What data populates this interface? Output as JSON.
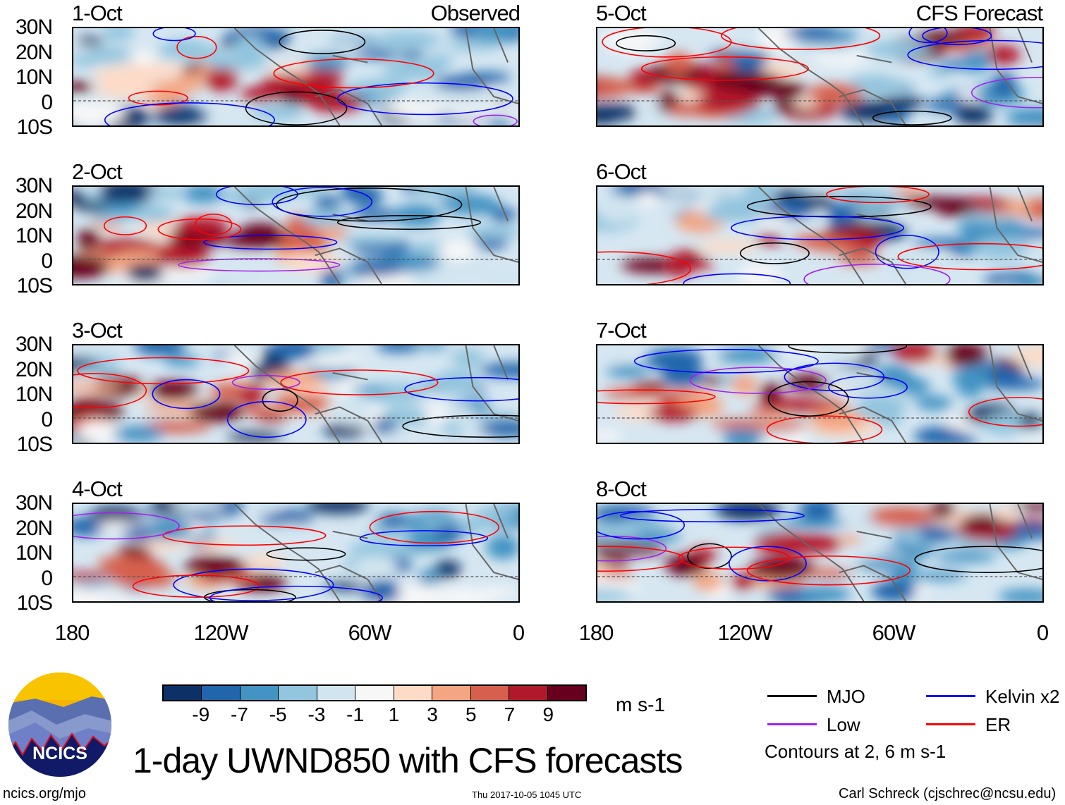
{
  "panels": {
    "left_title": "Observed",
    "right_title": "CFS Forecast",
    "observed_dates": [
      "1-Oct",
      "2-Oct",
      "3-Oct",
      "4-Oct"
    ],
    "forecast_dates": [
      "5-Oct",
      "6-Oct",
      "7-Oct",
      "8-Oct"
    ],
    "lat_labels": [
      "30N",
      "20N",
      "10N",
      "0",
      "10S"
    ],
    "lon_labels": [
      "180",
      "120W",
      "60W",
      "0"
    ]
  },
  "colorbar": {
    "colors": [
      "#0b3166",
      "#2166ac",
      "#4393c3",
      "#92c5de",
      "#d1e5f0",
      "#f7f7f7",
      "#fddbc7",
      "#f4a582",
      "#d6604d",
      "#b2182b",
      "#67001f"
    ],
    "labels": [
      "-9",
      "-7",
      "-5",
      "-3",
      "-1",
      "1",
      "3",
      "5",
      "7",
      "9"
    ],
    "units": "m s-1"
  },
  "legend": {
    "items": [
      {
        "label": "MJO",
        "color": "#000000"
      },
      {
        "label": "Kelvin x2",
        "color": "#0000ff"
      },
      {
        "label": "Low",
        "color": "#a020f0"
      },
      {
        "label": "ER",
        "color": "#ff0000"
      }
    ],
    "note": "Contours at 2, 6 m s-1"
  },
  "logo_text": "NCICS",
  "title": "1-day UWND850 with CFS forecasts",
  "footer": {
    "url": "ncics.org/mjo",
    "timestamp": "Thu 2017-10-05 1045 UTC",
    "author": "Carl Schreck (cjschrec@ncsu.edu)"
  }
}
